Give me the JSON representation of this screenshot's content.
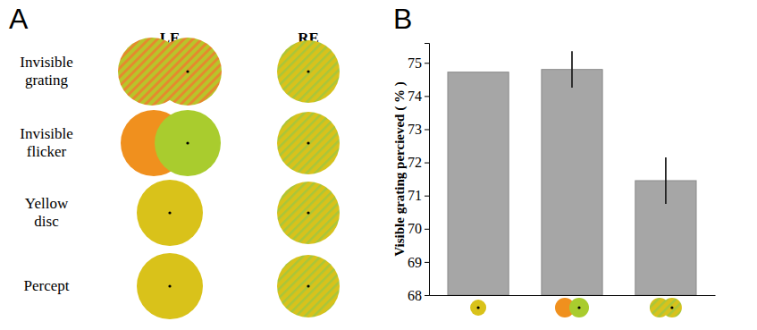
{
  "chart_data": {
    "type": "bar",
    "title": "B",
    "y_label": "Visible grating percieved ( % )",
    "categories": [
      null,
      null,
      null
    ],
    "values": [
      74.72,
      74.8,
      71.45
    ],
    "errors": [
      0,
      0.55,
      0.7
    ],
    "color": "#a6a6a6",
    "ylim": [
      68,
      75.6
    ],
    "yticks": [
      68,
      69,
      70,
      71,
      72,
      73,
      74,
      75
    ],
    "grid": false
  },
  "diagram": {
    "title": "A",
    "columns": [
      "LE",
      "RE"
    ],
    "rows": [
      "Invisible grating",
      "Invisible flicker",
      "Yellow disc",
      "Percept"
    ]
  }
}
